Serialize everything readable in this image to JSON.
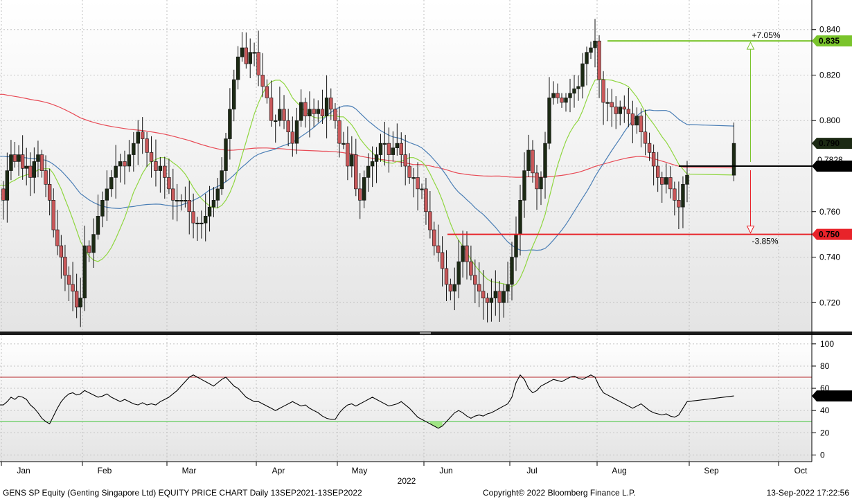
{
  "footer": {
    "left": "GENS SP Equity (Genting Singapore Ltd) EQUITY PRICE CHART  Daily 13SEP2021-13SEP2022",
    "center": "Copyright© 2022 Bloomberg Finance L.P.",
    "right": "13-Sep-2022 17:22:56"
  },
  "chart_data": [
    {
      "type": "candlestick",
      "panel": "price",
      "x_axis": {
        "month_labels": [
          "Jan",
          "Feb",
          "Mar",
          "Apr",
          "May",
          "Jun",
          "Jul",
          "Aug",
          "Sep",
          "Oct"
        ],
        "year_label": "2022"
      },
      "y_axis": {
        "position": "right",
        "ticks": [
          "0.720",
          "0.740",
          "0.760",
          "0.780",
          "0.800",
          "0.820",
          "0.840"
        ],
        "range": [
          0.707,
          0.853
        ]
      },
      "last_price_labels": [
        "0.790",
        "0.780"
      ],
      "overlapped_label": "0.7828",
      "resistance": {
        "value": 0.835,
        "label": "0.835",
        "pct_label": "+7.05%",
        "color": "#7ac42c"
      },
      "support": {
        "value": 0.75,
        "label": "0.750",
        "pct_label": "-3.85%",
        "color": "#e8232a"
      },
      "current_level": {
        "value": 0.78,
        "label": "0.780"
      },
      "bull_color": "#1c2a14",
      "bear_color": "#c9585a",
      "series_colors": {
        "ma_short": "#8fd63f",
        "ma_mid": "#4a7eb5",
        "ma_long": "#e84a55"
      },
      "days_per_month": [
        21,
        19,
        22,
        19,
        21,
        21,
        21,
        22,
        1
      ],
      "closes": [
        0.765,
        0.778,
        0.785,
        0.782,
        0.785,
        0.779,
        0.78,
        0.775,
        0.782,
        0.785,
        0.778,
        0.772,
        0.765,
        0.752,
        0.745,
        0.74,
        0.732,
        0.728,
        0.725,
        0.718,
        0.722,
        0.745,
        0.742,
        0.75,
        0.758,
        0.765,
        0.77,
        0.775,
        0.78,
        0.782,
        0.78,
        0.785,
        0.79,
        0.795,
        0.792,
        0.786,
        0.782,
        0.778,
        0.78,
        0.775,
        0.77,
        0.765,
        0.765,
        0.765,
        0.765,
        0.76,
        0.755,
        0.755,
        0.755,
        0.758,
        0.762,
        0.765,
        0.77,
        0.778,
        0.792,
        0.805,
        0.818,
        0.828,
        0.832,
        0.825,
        0.83,
        0.83,
        0.82,
        0.815,
        0.81,
        0.8,
        0.8,
        0.805,
        0.8,
        0.795,
        0.79,
        0.8,
        0.808,
        0.802,
        0.805,
        0.803,
        0.805,
        0.802,
        0.81,
        0.805,
        0.8,
        0.79,
        0.79,
        0.78,
        0.785,
        0.77,
        0.765,
        0.775,
        0.78,
        0.782,
        0.785,
        0.79,
        0.79,
        0.785,
        0.788,
        0.79,
        0.785,
        0.78,
        0.775,
        0.775,
        0.77,
        0.77,
        0.76,
        0.752,
        0.745,
        0.742,
        0.735,
        0.728,
        0.725,
        0.728,
        0.738,
        0.745,
        0.738,
        0.732,
        0.728,
        0.725,
        0.722,
        0.72,
        0.722,
        0.725,
        0.72,
        0.725,
        0.728,
        0.74,
        0.75,
        0.765,
        0.778,
        0.787,
        0.777,
        0.77,
        0.775,
        0.79,
        0.81,
        0.812,
        0.81,
        0.808,
        0.81,
        0.812,
        0.814,
        0.815,
        0.825,
        0.83,
        0.832,
        0.835,
        0.818,
        0.808,
        0.808,
        0.806,
        0.803,
        0.806,
        0.805,
        0.803,
        0.798,
        0.802,
        0.795,
        0.79,
        0.786,
        0.78,
        0.775,
        0.772,
        0.775,
        0.77,
        0.765,
        0.762,
        0.772,
        0.776,
        0.79
      ]
    },
    {
      "type": "line",
      "panel": "rsi",
      "y_axis": {
        "position": "right",
        "ticks": [
          "0",
          "20",
          "40",
          "60",
          "80",
          "100"
        ],
        "range": [
          -6,
          108
        ]
      },
      "overbought": 70,
      "oversold": 30,
      "last_value_label": "53.1061",
      "values": [
        45,
        48,
        52,
        50,
        53,
        52,
        50,
        45,
        42,
        38,
        33,
        30,
        28,
        35,
        42,
        48,
        52,
        55,
        56,
        54,
        55,
        58,
        56,
        54,
        52,
        53,
        55,
        52,
        50,
        48,
        50,
        48,
        46,
        45,
        47,
        45,
        46,
        45,
        48,
        50,
        52,
        55,
        58,
        62,
        66,
        70,
        72,
        70,
        68,
        66,
        64,
        62,
        65,
        68,
        70,
        66,
        62,
        60,
        56,
        52,
        50,
        48,
        48,
        46,
        44,
        42,
        40,
        42,
        44,
        46,
        48,
        46,
        44,
        45,
        42,
        40,
        38,
        35,
        33,
        32,
        32,
        38,
        42,
        45,
        46,
        44,
        46,
        48,
        50,
        52,
        50,
        48,
        46,
        44,
        45,
        46,
        48,
        45,
        42,
        38,
        34,
        32,
        30,
        28,
        26,
        24,
        26,
        30,
        34,
        38,
        40,
        38,
        35,
        33,
        35,
        36,
        35,
        37,
        38,
        40,
        42,
        44,
        46,
        52,
        65,
        72,
        68,
        60,
        56,
        58,
        62,
        64,
        66,
        68,
        67,
        66,
        68,
        70,
        71,
        69,
        68,
        70,
        72,
        70,
        62,
        56,
        54,
        52,
        50,
        48,
        46,
        44,
        42,
        44,
        46,
        43,
        40,
        38,
        37,
        36,
        37,
        35,
        34,
        36,
        42,
        48,
        53.1
      ]
    }
  ]
}
